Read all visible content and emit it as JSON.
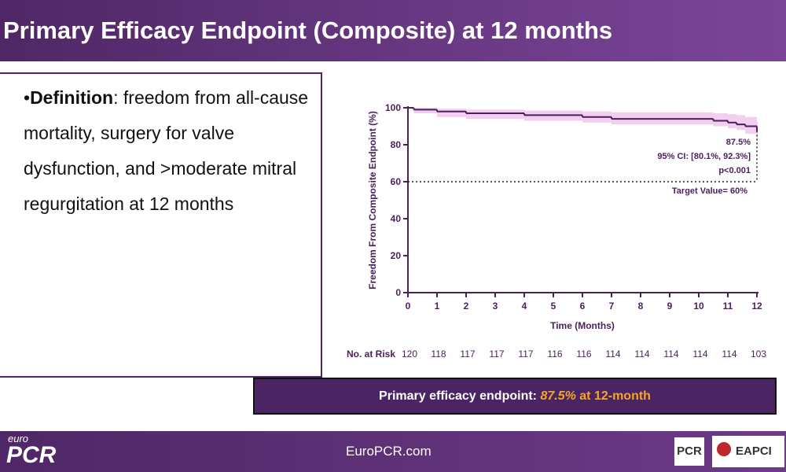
{
  "header": {
    "title": "Primary Efficacy Endpoint (Composite) at 12 months"
  },
  "definition": {
    "bullet": "•",
    "term": "Definition",
    "text": ": freedom from all-cause mortality, surgery for valve dysfunction, and >moderate mitral regurgitation at 12 months"
  },
  "chart_data": {
    "type": "line",
    "x_label": "Time (Months)",
    "y_label": "Freedom From Composite Endpoint (%)",
    "xlim": [
      0,
      12
    ],
    "ylim": [
      0,
      100
    ],
    "xticks": [
      0,
      1,
      2,
      3,
      4,
      5,
      6,
      7,
      8,
      9,
      10,
      11,
      12
    ],
    "yticks": [
      0,
      20,
      40,
      60,
      80,
      100
    ],
    "step": true,
    "series": [
      {
        "name": "Composite endpoint",
        "color": "#4a1f5c",
        "x": [
          0,
          0.2,
          1,
          2,
          4,
          6,
          7,
          10.5,
          11,
          11.3,
          11.6,
          12
        ],
        "values": [
          100,
          99,
          98,
          97,
          96,
          95,
          94,
          93,
          92,
          91,
          90,
          87.5
        ],
        "ci_lower": [
          100,
          97,
          95,
          94,
          93,
          92,
          91,
          90,
          89,
          88,
          86,
          80.1
        ],
        "ci_upper": [
          100,
          100,
          99.5,
          99,
          98.5,
          98,
          97.5,
          97,
          96.5,
          96,
          95,
          92.3
        ],
        "ci_color": "#f2c6ec"
      }
    ],
    "target": {
      "value": 60,
      "label": "Target Value= 60%"
    },
    "annotations": [
      "87.5%",
      "95% CI: [80.1%, 92.3%]",
      "p<0.001"
    ],
    "at_risk": {
      "label": "No. at Risk",
      "values": [
        120,
        118,
        117,
        117,
        117,
        116,
        116,
        114,
        114,
        114,
        114,
        114,
        103
      ]
    }
  },
  "banner": {
    "label": "Primary efficacy endpoint",
    "separator": ": ",
    "value": "87.5%",
    "suffix": " at 12-month"
  },
  "footer": {
    "logo_small": "euro",
    "logo": "PCR",
    "url": "EuroPCR.com",
    "partner_logo": "PCR",
    "eapci": "EAPCI"
  }
}
